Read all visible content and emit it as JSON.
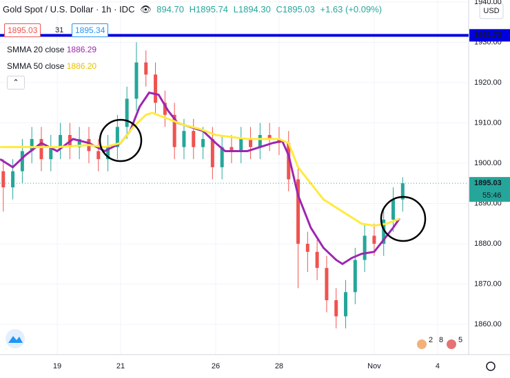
{
  "header": {
    "symbol": "Gold Spot / U.S. Dollar · 1h · IDC",
    "open": "894.70",
    "high": "H1895.74",
    "low": "L1894.30",
    "close": "C1895.03",
    "change": "+1.63 (+0.09%)"
  },
  "trade": {
    "sell": "1895.03",
    "spread": "31",
    "buy": "1895.34"
  },
  "currency": "USD",
  "countdown": "55:46",
  "events": [
    "2",
    "8",
    "5"
  ],
  "chart_data": {
    "type": "candlestick",
    "x": [
      -1.7,
      -1.4,
      -1.1,
      -0.8,
      -0.5,
      -0.2,
      0.1,
      0.4,
      0.7,
      1.0,
      1.3,
      1.6,
      1.9,
      2.2,
      2.5,
      2.8,
      3.1,
      3.4,
      3.7,
      4.0,
      4.3,
      4.6,
      4.9,
      5.2,
      5.5,
      5.8,
      6.1,
      6.4,
      6.7,
      7.0,
      7.3,
      7.6,
      7.9,
      8.2,
      8.5,
      8.8,
      9.1,
      9.4,
      9.7,
      10.0,
      10.3,
      10.6,
      10.9
    ],
    "open": [
      1898,
      1894,
      1898,
      1903,
      1906,
      1901,
      1904,
      1907,
      1904,
      1906,
      1903,
      1901,
      1904,
      1909,
      1916,
      1925,
      1922,
      1915,
      1912,
      1904,
      1908,
      1904,
      1906,
      1899,
      1904,
      1903,
      1906,
      1904,
      1907,
      1906,
      1905,
      1896,
      1880,
      1878,
      1874,
      1866,
      1862,
      1868,
      1876,
      1882,
      1880,
      1886,
      1891
    ],
    "high": [
      1901,
      1901,
      1906,
      1909,
      1909,
      1907,
      1910,
      1910,
      1909,
      1909,
      1906,
      1907,
      1912,
      1919,
      1930,
      1928,
      1925,
      1918,
      1915,
      1911,
      1911,
      1909,
      1909,
      1907,
      1907,
      1909,
      1909,
      1910,
      1910,
      1909,
      1908,
      1899,
      1883,
      1881,
      1877,
      1869,
      1871,
      1879,
      1885,
      1885,
      1889,
      1894,
      1896.5
    ],
    "low": [
      1888,
      1891,
      1895,
      1900,
      1898,
      1898,
      1901,
      1901,
      1901,
      1900,
      1898,
      1898,
      1901,
      1906,
      1913,
      1919,
      1912,
      1909,
      1901,
      1901,
      1901,
      1901,
      1896,
      1896,
      1900,
      1900,
      1901,
      1901,
      1903,
      1902,
      1893,
      1869,
      1873,
      1871,
      1863,
      1859,
      1859,
      1865,
      1873,
      1877,
      1877,
      1883,
      1888
    ],
    "close": [
      1894,
      1898,
      1903,
      1906,
      1901,
      1904,
      1907,
      1904,
      1906,
      1903,
      1901,
      1904,
      1909,
      1916,
      1925,
      1922,
      1915,
      1912,
      1904,
      1908,
      1904,
      1906,
      1899,
      1904,
      1903,
      1906,
      1904,
      1907,
      1906,
      1905,
      1896,
      1880,
      1878,
      1874,
      1866,
      1862,
      1868,
      1876,
      1882,
      1880,
      1886,
      1891,
      1895.03
    ],
    "up_color": "#26a69a",
    "down_color": "#ef5350",
    "series": [
      {
        "name": "SMMA 20 close",
        "legend_value": "1886.29",
        "color": "#9c27b0",
        "x": [
          -1.8,
          -1.4,
          -1,
          -0.5,
          0,
          0.5,
          1,
          1.5,
          2,
          2.3,
          2.6,
          2.9,
          3.2,
          3.5,
          3.8,
          4.2,
          4.6,
          5,
          5.3,
          5.7,
          6,
          6.4,
          6.8,
          7.1,
          7.3,
          7.6,
          8,
          8.4,
          8.8,
          9,
          9.3,
          9.6,
          10,
          10.3,
          10.6,
          10.8
        ],
        "values": [
          1901,
          1899,
          1902,
          1905,
          1903,
          1906,
          1905,
          1903,
          1905,
          1908,
          1914,
          1917.5,
          1917,
          1913,
          1910,
          1909,
          1908,
          1905,
          1903,
          1903,
          1903,
          1904,
          1905,
          1905.5,
          1902,
          1892,
          1884,
          1879,
          1876,
          1875,
          1876.5,
          1877.5,
          1878,
          1881,
          1884,
          1886.29
        ]
      },
      {
        "name": "SMMA 50 close",
        "legend_value": "1886.20",
        "color": "#ffeb3b",
        "x": [
          -1.8,
          -1,
          0,
          1,
          1.5,
          2,
          2.4,
          2.8,
          3,
          3.5,
          4,
          4.5,
          5,
          5.5,
          6,
          6.5,
          7,
          7.3,
          7.6,
          8,
          8.4,
          8.8,
          9.2,
          9.6,
          10,
          10.4,
          10.8
        ],
        "values": [
          1904,
          1904,
          1904,
          1904.5,
          1904,
          1905,
          1909,
          1912,
          1912.5,
          1911,
          1909.5,
          1908.5,
          1907,
          1906.5,
          1906,
          1906,
          1906,
          1905,
          1899,
          1895,
          1891,
          1889,
          1887,
          1885,
          1884.5,
          1885,
          1886.2
        ]
      }
    ],
    "hline": {
      "value": 1931.73,
      "color": "#0000dd"
    },
    "last_price": {
      "value": 1895.03,
      "color": "#26a69a"
    },
    "xlim": [
      -1.804,
      12.98
    ],
    "xticks": [
      {
        "value": 0,
        "label": "19"
      },
      {
        "value": 2,
        "label": "21"
      },
      {
        "value": 5,
        "label": "26"
      },
      {
        "value": 7,
        "label": "28"
      },
      {
        "value": 10,
        "label": "Nov"
      },
      {
        "value": 12,
        "label": "4"
      }
    ],
    "ylim": [
      1852.5,
      1940.5
    ],
    "yticks": [
      {
        "value": 1860,
        "label": "1860.00"
      },
      {
        "value": 1870,
        "label": "1870.00"
      },
      {
        "value": 1880,
        "label": "1880.00"
      },
      {
        "value": 1890,
        "label": "1890.00"
      },
      {
        "value": 1900,
        "label": "1900.00"
      },
      {
        "value": 1910,
        "label": "1910.00"
      },
      {
        "value": 1920,
        "label": "1920.00"
      },
      {
        "value": 1930,
        "label": "1930.00"
      },
      {
        "value": 1940,
        "label": "1940.00"
      }
    ],
    "grid": true
  }
}
